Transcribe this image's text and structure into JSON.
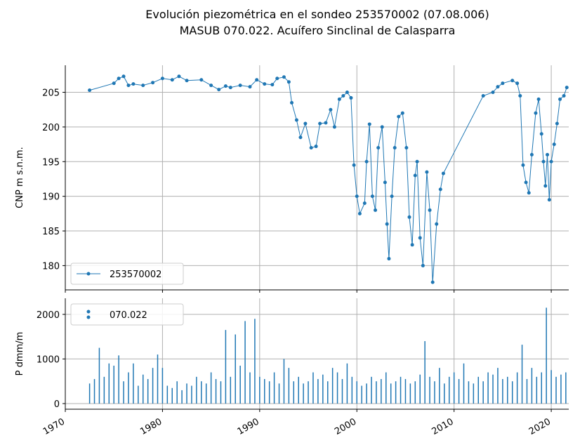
{
  "chart_data": [
    {
      "type": "line",
      "title": "Evolución piezométrica en el sondeo 253570002 (07.08.006)",
      "subtitle": "MASUB 070.022. Acuífero Sinclinal de Calasparra",
      "y_label": "CNP m s.n.m.",
      "legend": "lower left",
      "grid": true,
      "xlim": [
        1970,
        2021.8
      ],
      "xticks": [
        1970,
        1980,
        1990,
        2000,
        2010,
        2020
      ],
      "ylim": [
        176.5,
        208.9
      ],
      "yticks": [
        180,
        185,
        190,
        195,
        200,
        205
      ],
      "series": [
        {
          "name": "253570002",
          "color": "#1f77b4",
          "x": [
            1972.5,
            1975,
            1975.5,
            1976,
            1976.5,
            1977,
            1978,
            1979,
            1980,
            1981,
            1981.7,
            1982.5,
            1984,
            1985,
            1985.8,
            1986.5,
            1987,
            1988,
            1989,
            1989.7,
            1990.5,
            1991.3,
            1991.8,
            1992.5,
            1993,
            1993.3,
            1993.8,
            1994.2,
            1994.7,
            1995.3,
            1995.8,
            1996.2,
            1996.8,
            1997.3,
            1997.7,
            1998.2,
            1998.6,
            1999,
            1999.4,
            1999.7,
            2000,
            2000.3,
            2000.8,
            2001,
            2001.3,
            2001.6,
            2001.9,
            2002.2,
            2002.6,
            2002.9,
            2003.1,
            2003.3,
            2003.6,
            2003.9,
            2004.3,
            2004.7,
            2005.1,
            2005.4,
            2005.7,
            2006,
            2006.2,
            2006.5,
            2006.8,
            2007.2,
            2007.5,
            2007.8,
            2008.2,
            2008.6,
            2008.9,
            2013,
            2014,
            2014.5,
            2015,
            2016,
            2016.5,
            2016.8,
            2017.1,
            2017.4,
            2017.7,
            2018,
            2018.4,
            2018.7,
            2019,
            2019.2,
            2019.4,
            2019.6,
            2019.8,
            2020,
            2020.3,
            2020.6,
            2020.9,
            2021.3,
            2021.6
          ],
          "values": [
            205.3,
            206.3,
            207,
            207.3,
            206,
            206.2,
            206,
            206.4,
            207,
            206.8,
            207.3,
            206.7,
            206.8,
            206,
            205.4,
            205.9,
            205.7,
            206,
            205.8,
            206.8,
            206.2,
            206.1,
            207,
            207.2,
            206.5,
            203.5,
            201,
            198.5,
            200.5,
            197,
            197.2,
            200.5,
            200.6,
            202.5,
            200,
            204,
            204.5,
            205,
            204.2,
            194.5,
            190,
            187.5,
            189,
            195,
            200.4,
            190,
            188,
            197,
            200,
            192,
            186,
            181,
            190,
            197,
            201.5,
            202,
            197,
            187,
            183,
            193,
            195,
            184,
            180,
            193.5,
            188,
            177.6,
            186,
            191,
            193.3,
            204.5,
            205,
            205.8,
            206.3,
            206.7,
            206.3,
            204.5,
            194.5,
            192,
            190.5,
            196,
            202,
            204,
            199,
            195,
            191.5,
            196,
            189.5,
            195,
            197.5,
            200.5,
            204,
            204.5,
            205.7
          ]
        }
      ]
    },
    {
      "type": "bar",
      "y_label": "P dmm/m",
      "legend": "upper left",
      "grid": true,
      "xlim": [
        1970,
        2021.8
      ],
      "xticks": [
        1970,
        1980,
        1990,
        2000,
        2010,
        2020
      ],
      "ylim": [
        -126,
        2360
      ],
      "yticks": [
        0,
        1000,
        2000
      ],
      "series": [
        {
          "name": "070.022",
          "color": "#1f77b4",
          "x": [
            1972.5,
            1973,
            1973.5,
            1974,
            1974.5,
            1975,
            1975.5,
            1976,
            1976.5,
            1977,
            1977.5,
            1978,
            1978.5,
            1979,
            1979.5,
            1980,
            1980.5,
            1981,
            1981.5,
            1982,
            1982.5,
            1983,
            1983.5,
            1984,
            1984.5,
            1985,
            1985.5,
            1986,
            1986.5,
            1987,
            1987.5,
            1988,
            1988.5,
            1989,
            1989.5,
            1990,
            1990.5,
            1991,
            1991.5,
            1992,
            1992.5,
            1993,
            1993.5,
            1994,
            1994.5,
            1995,
            1995.5,
            1996,
            1996.5,
            1997,
            1997.5,
            1998,
            1998.5,
            1999,
            1999.5,
            2000,
            2000.5,
            2001,
            2001.5,
            2002,
            2002.5,
            2003,
            2003.5,
            2004,
            2004.5,
            2005,
            2005.5,
            2006,
            2006.5,
            2007,
            2007.5,
            2008,
            2008.5,
            2009,
            2009.5,
            2010,
            2010.5,
            2011,
            2011.5,
            2012,
            2012.5,
            2013,
            2013.5,
            2014,
            2014.5,
            2015,
            2015.5,
            2016,
            2016.5,
            2017,
            2017.5,
            2018,
            2018.5,
            2019,
            2019.5,
            2020,
            2020.5,
            2021,
            2021.5
          ],
          "values": [
            450,
            550,
            1250,
            600,
            900,
            850,
            1080,
            500,
            700,
            900,
            400,
            650,
            550,
            800,
            1100,
            800,
            400,
            350,
            500,
            300,
            450,
            400,
            600,
            500,
            450,
            700,
            550,
            500,
            1650,
            600,
            1550,
            850,
            1850,
            700,
            1900,
            600,
            550,
            500,
            700,
            450,
            1000,
            800,
            500,
            600,
            450,
            500,
            700,
            550,
            650,
            500,
            800,
            700,
            550,
            900,
            600,
            500,
            400,
            450,
            600,
            500,
            550,
            700,
            450,
            500,
            600,
            550,
            450,
            500,
            650,
            1400,
            600,
            500,
            800,
            450,
            600,
            700,
            550,
            900,
            500,
            450,
            600,
            500,
            700,
            650,
            800,
            550,
            600,
            500,
            700,
            1320,
            550,
            800,
            600,
            700,
            2150,
            750,
            600,
            650,
            700
          ]
        }
      ]
    }
  ]
}
